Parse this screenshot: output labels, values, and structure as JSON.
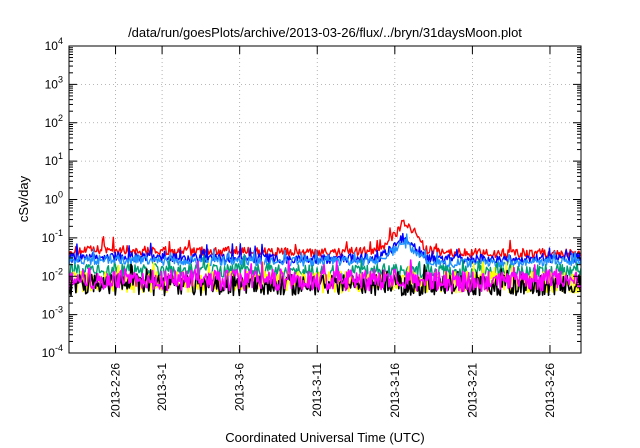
{
  "chart_data": {
    "type": "line",
    "title": "/data/run/goesPlots/archive/2013-03-26/flux/../bryn/31daysMoon.plot",
    "xlabel": "Coordinated Universal Time (UTC)",
    "ylabel": "cSv/day",
    "yscale": "log",
    "ylim": [
      0.0001,
      10000
    ],
    "xlim": [
      "2013-02-23",
      "2013-03-28"
    ],
    "grid": true,
    "legend": "none",
    "y_ticks": [
      {
        "value": 0.0001,
        "base": "10",
        "exp": "-4"
      },
      {
        "value": 0.001,
        "base": "10",
        "exp": "-3"
      },
      {
        "value": 0.01,
        "base": "10",
        "exp": "-2"
      },
      {
        "value": 0.1,
        "base": "10",
        "exp": "-1"
      },
      {
        "value": 1,
        "base": "10",
        "exp": "0"
      },
      {
        "value": 10,
        "base": "10",
        "exp": "1"
      },
      {
        "value": 100,
        "base": "10",
        "exp": "2"
      },
      {
        "value": 1000,
        "base": "10",
        "exp": "3"
      },
      {
        "value": 10000,
        "base": "10",
        "exp": "4"
      }
    ],
    "x_ticks": [
      {
        "date": "2013-02-26",
        "label": "2013-2-26"
      },
      {
        "date": "2013-03-01",
        "label": "2013-3-1"
      },
      {
        "date": "2013-03-06",
        "label": "2013-3-6"
      },
      {
        "date": "2013-03-11",
        "label": "2013-3-11"
      },
      {
        "date": "2013-03-16",
        "label": "2013-3-16"
      },
      {
        "date": "2013-03-21",
        "label": "2013-3-21"
      },
      {
        "date": "2013-03-26",
        "label": "2013-3-26"
      }
    ],
    "series": [
      {
        "color": "#ff0000",
        "x": [
          "2013-02-23",
          "2013-02-26",
          "2013-03-01",
          "2013-03-06",
          "2013-03-11",
          "2013-03-14",
          "2013-03-15",
          "2013-03-16",
          "2013-03-16T12:00",
          "2013-03-17",
          "2013-03-17T12:00",
          "2013-03-18",
          "2013-03-19",
          "2013-03-21",
          "2013-03-24",
          "2013-03-26",
          "2013-03-28"
        ],
        "y": [
          0.045,
          0.05,
          0.045,
          0.045,
          0.04,
          0.045,
          0.05,
          0.12,
          0.25,
          0.2,
          0.1,
          0.05,
          0.04,
          0.04,
          0.04,
          0.04,
          0.04
        ]
      },
      {
        "color": "#0000ff",
        "x": [
          "2013-02-23",
          "2013-02-26",
          "2013-03-01",
          "2013-03-06",
          "2013-03-11",
          "2013-03-14",
          "2013-03-15",
          "2013-03-16",
          "2013-03-16T12:00",
          "2013-03-17",
          "2013-03-17T12:00",
          "2013-03-18",
          "2013-03-19",
          "2013-03-21",
          "2013-03-24",
          "2013-03-26",
          "2013-03-28"
        ],
        "y": [
          0.03,
          0.033,
          0.03,
          0.03,
          0.028,
          0.03,
          0.03,
          0.06,
          0.1,
          0.08,
          0.05,
          0.03,
          0.028,
          0.028,
          0.028,
          0.03,
          0.03
        ]
      },
      {
        "color": "#1e90ff",
        "x": [
          "2013-02-23",
          "2013-02-26",
          "2013-03-01",
          "2013-03-06",
          "2013-03-11",
          "2013-03-14",
          "2013-03-15",
          "2013-03-16",
          "2013-03-16T12:00",
          "2013-03-17",
          "2013-03-17T12:00",
          "2013-03-18",
          "2013-03-19",
          "2013-03-21",
          "2013-03-24",
          "2013-03-26",
          "2013-03-28"
        ],
        "y": [
          0.025,
          0.028,
          0.025,
          0.025,
          0.024,
          0.025,
          0.026,
          0.05,
          0.08,
          0.06,
          0.04,
          0.025,
          0.022,
          0.022,
          0.022,
          0.025,
          0.025
        ]
      },
      {
        "color": "#009e73",
        "x": [
          "2013-02-23",
          "2013-02-26",
          "2013-03-01",
          "2013-03-06",
          "2013-03-11",
          "2013-03-16",
          "2013-03-21",
          "2013-03-26",
          "2013-03-28"
        ],
        "y": [
          0.014,
          0.014,
          0.014,
          0.014,
          0.013,
          0.014,
          0.013,
          0.014,
          0.014
        ]
      },
      {
        "color": "#ffff00",
        "x": [
          "2013-02-23",
          "2013-02-26",
          "2013-03-01",
          "2013-03-06",
          "2013-03-11",
          "2013-03-16",
          "2013-03-21",
          "2013-03-26",
          "2013-03-28"
        ],
        "y": [
          0.007,
          0.007,
          0.007,
          0.007,
          0.007,
          0.007,
          0.007,
          0.007,
          0.007
        ]
      },
      {
        "color": "#000000",
        "x": [
          "2013-02-23",
          "2013-02-26",
          "2013-03-01",
          "2013-03-06",
          "2013-03-11",
          "2013-03-16",
          "2013-03-21",
          "2013-03-26",
          "2013-03-28"
        ],
        "y": [
          0.006,
          0.006,
          0.006,
          0.006,
          0.006,
          0.006,
          0.006,
          0.006,
          0.006
        ]
      },
      {
        "color": "#ff00ff",
        "x": [
          "2013-02-23",
          "2013-02-26",
          "2013-03-01",
          "2013-03-06",
          "2013-03-11",
          "2013-03-16",
          "2013-03-21",
          "2013-03-26",
          "2013-03-28"
        ],
        "y": [
          0.008,
          0.009,
          0.008,
          0.008,
          0.008,
          0.008,
          0.007,
          0.008,
          0.008
        ]
      }
    ]
  }
}
